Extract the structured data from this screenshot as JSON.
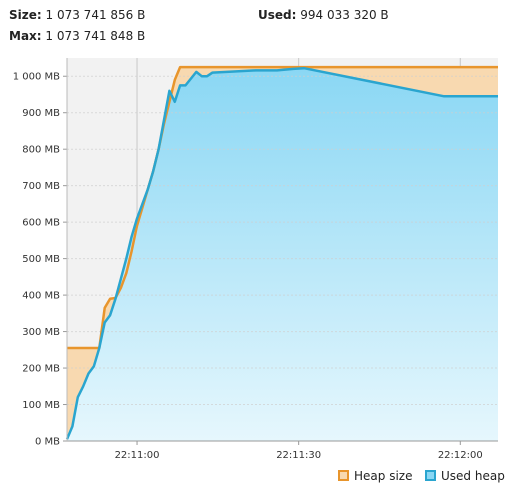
{
  "stats": {
    "size_label": "Size:",
    "size_value": "1 073 741 856 B",
    "used_label": "Used:",
    "used_value": "994 033 320 B",
    "max_label": "Max:",
    "max_value": "1 073 741 848 B"
  },
  "colors": {
    "heap_line": "#e8952c",
    "heap_fill": "#f8d9b0",
    "used_line": "#2aa5cf",
    "used_fill_top": "#8ad7f4",
    "used_fill_bottom": "#e6f7fd",
    "plot_bg": "#f2f2f2",
    "grid": "#d9d9d9"
  },
  "legend": {
    "heap_label": "Heap size",
    "used_label": "Used heap"
  },
  "chart_data": {
    "type": "area",
    "ylabel_unit": "MB",
    "ylim": [
      0,
      1050
    ],
    "xlim_seconds": [
      "22:10:47",
      "22:12:07"
    ],
    "y_ticks": [
      {
        "value": 0,
        "label": "0 MB"
      },
      {
        "value": 100,
        "label": "100 MB"
      },
      {
        "value": 200,
        "label": "200 MB"
      },
      {
        "value": 300,
        "label": "300 MB"
      },
      {
        "value": 400,
        "label": "400 MB"
      },
      {
        "value": 500,
        "label": "500 MB"
      },
      {
        "value": 600,
        "label": "600 MB"
      },
      {
        "value": 700,
        "label": "700 MB"
      },
      {
        "value": 800,
        "label": "800 MB"
      },
      {
        "value": 900,
        "label": "900 MB"
      },
      {
        "value": 1000,
        "label": "1 000 MB"
      }
    ],
    "x_ticks": [
      {
        "time": "22:11:00",
        "label": "22:11:00"
      },
      {
        "time": "22:11:30",
        "label": "22:11:30"
      },
      {
        "time": "22:12:00",
        "label": "22:12:00"
      }
    ],
    "series": [
      {
        "name": "Heap size",
        "points": [
          [
            "22:10:47",
            255
          ],
          [
            "22:10:53",
            255
          ],
          [
            "22:10:54",
            365
          ],
          [
            "22:10:55",
            390
          ],
          [
            "22:10:56",
            392
          ],
          [
            "22:10:57",
            420
          ],
          [
            "22:10:58",
            460
          ],
          [
            "22:10:59",
            520
          ],
          [
            "22:11:00",
            590
          ],
          [
            "22:11:01",
            640
          ],
          [
            "22:11:02",
            690
          ],
          [
            "22:11:03",
            740
          ],
          [
            "22:11:04",
            800
          ],
          [
            "22:11:05",
            870
          ],
          [
            "22:11:06",
            930
          ],
          [
            "22:11:07",
            990
          ],
          [
            "22:11:08",
            1025
          ],
          [
            "22:12:07",
            1025
          ]
        ]
      },
      {
        "name": "Used heap",
        "points": [
          [
            "22:10:47",
            5
          ],
          [
            "22:10:48",
            40
          ],
          [
            "22:10:49",
            120
          ],
          [
            "22:10:50",
            150
          ],
          [
            "22:10:51",
            185
          ],
          [
            "22:10:52",
            205
          ],
          [
            "22:10:53",
            255
          ],
          [
            "22:10:54",
            325
          ],
          [
            "22:10:55",
            345
          ],
          [
            "22:10:56",
            390
          ],
          [
            "22:10:57",
            445
          ],
          [
            "22:10:58",
            500
          ],
          [
            "22:10:59",
            560
          ],
          [
            "22:11:00",
            610
          ],
          [
            "22:11:01",
            650
          ],
          [
            "22:11:02",
            690
          ],
          [
            "22:11:03",
            740
          ],
          [
            "22:11:04",
            800
          ],
          [
            "22:11:05",
            880
          ],
          [
            "22:11:06",
            960
          ],
          [
            "22:11:07",
            930
          ],
          [
            "22:11:08",
            975
          ],
          [
            "22:11:09",
            975
          ],
          [
            "22:11:11",
            1012
          ],
          [
            "22:11:12",
            1000
          ],
          [
            "22:11:13",
            1000
          ],
          [
            "22:11:14",
            1010
          ],
          [
            "22:11:18",
            1013
          ],
          [
            "22:11:22",
            1016
          ],
          [
            "22:11:26",
            1016
          ],
          [
            "22:11:29",
            1020
          ],
          [
            "22:11:31",
            1022
          ],
          [
            "22:11:57",
            945
          ],
          [
            "22:12:07",
            945
          ]
        ]
      }
    ]
  }
}
